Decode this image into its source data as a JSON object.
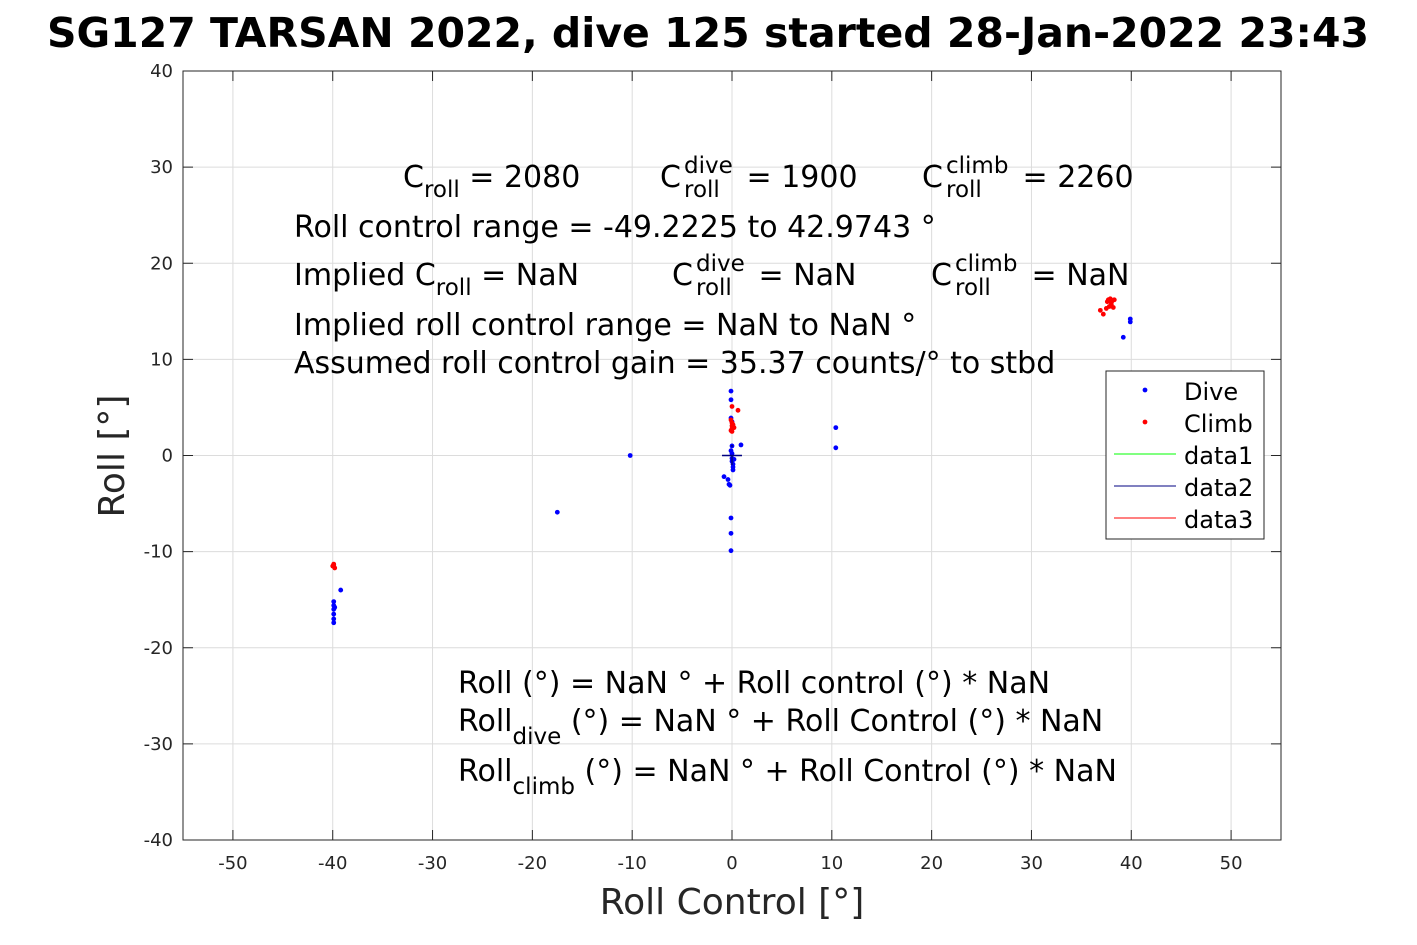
{
  "chart_data": {
    "type": "scatter",
    "title": "SG127 TARSAN 2022, dive 125 started 28-Jan-2022 23:43",
    "xlabel": "Roll Control [°]",
    "ylabel": "Roll [°]",
    "xlim": [
      -55,
      55
    ],
    "ylim": [
      -40,
      40
    ],
    "xticks": [
      -50,
      -40,
      -30,
      -20,
      -10,
      0,
      10,
      20,
      30,
      40,
      50
    ],
    "yticks": [
      -40,
      -30,
      -20,
      -10,
      0,
      10,
      20,
      30,
      40
    ],
    "grid": true,
    "legend_position": "right",
    "series": [
      {
        "name": "Dive",
        "color": "#0000ff",
        "marker": "dot",
        "points": [
          [
            -39.9,
            -15.2
          ],
          [
            -39.9,
            -15.6
          ],
          [
            -39.9,
            -16.0
          ],
          [
            -39.9,
            -16.5
          ],
          [
            -39.9,
            -17.0
          ],
          [
            -39.9,
            -17.4
          ],
          [
            -39.8,
            -15.8
          ],
          [
            -39.2,
            -14.0
          ],
          [
            -17.5,
            -5.9
          ],
          [
            -10.2,
            0.0
          ],
          [
            -0.8,
            -2.2
          ],
          [
            -0.4,
            -2.5
          ],
          [
            -0.3,
            -3.0
          ],
          [
            -0.2,
            -3.1
          ],
          [
            -0.1,
            -6.5
          ],
          [
            -0.1,
            -8.1
          ],
          [
            -0.1,
            -9.9
          ],
          [
            0.0,
            -0.3
          ],
          [
            0.0,
            -0.6
          ],
          [
            0.1,
            -0.9
          ],
          [
            0.1,
            -1.2
          ],
          [
            0.2,
            -0.4
          ],
          [
            0.0,
            0.2
          ],
          [
            -0.1,
            0.5
          ],
          [
            0.0,
            1.0
          ],
          [
            0.1,
            -1.5
          ],
          [
            0.0,
            3.5
          ],
          [
            -0.1,
            3.9
          ],
          [
            -0.1,
            5.8
          ],
          [
            -0.1,
            6.7
          ],
          [
            0.9,
            1.1
          ],
          [
            10.4,
            2.9
          ],
          [
            10.4,
            0.8
          ],
          [
            39.2,
            12.3
          ],
          [
            39.9,
            13.9
          ],
          [
            39.9,
            14.2
          ]
        ]
      },
      {
        "name": "Climb",
        "color": "#ff0000",
        "marker": "dot",
        "points": [
          [
            -39.9,
            -11.3
          ],
          [
            -40.0,
            -11.5
          ],
          [
            -39.8,
            -11.7
          ],
          [
            -39.9,
            -11.4
          ],
          [
            0.0,
            2.5
          ],
          [
            0.0,
            2.8
          ],
          [
            0.0,
            3.1
          ],
          [
            0.0,
            3.4
          ],
          [
            -0.1,
            2.6
          ],
          [
            0.1,
            3.2
          ],
          [
            0.2,
            2.9
          ],
          [
            0.0,
            5.1
          ],
          [
            0.6,
            4.7
          ],
          [
            -0.1,
            3.7
          ],
          [
            36.9,
            15.1
          ],
          [
            37.2,
            14.7
          ],
          [
            37.5,
            15.3
          ],
          [
            37.6,
            16.0
          ],
          [
            37.8,
            15.5
          ],
          [
            37.9,
            16.3
          ],
          [
            38.0,
            15.7
          ],
          [
            38.1,
            16.1
          ],
          [
            38.2,
            15.4
          ],
          [
            38.3,
            16.2
          ],
          [
            37.7,
            16.2
          ],
          [
            38.0,
            15.9
          ]
        ]
      },
      {
        "name": "data1",
        "color": "#00ff00",
        "marker": "line",
        "points": []
      },
      {
        "name": "data2",
        "color": "#000080",
        "marker": "line",
        "points": [
          [
            -1.0,
            0.0
          ],
          [
            1.0,
            0.0
          ],
          [
            0.0,
            0.0
          ],
          [
            0.0,
            -1.0
          ],
          [
            0.0,
            1.0
          ]
        ]
      },
      {
        "name": "data3",
        "color": "#ff0000",
        "marker": "line",
        "points": []
      }
    ],
    "annotations": {
      "c_roll": {
        "base": "C",
        "sub": "roll",
        "value": " = 2080"
      },
      "c_dive": {
        "base": "C",
        "sup": "dive",
        "sub": "roll",
        "value": " = 1900"
      },
      "c_climb": {
        "base": "C",
        "sup": "climb",
        "sub": "roll",
        "value": " = 2260"
      },
      "range_line": "Roll control range = -49.2225 to 42.9743 °",
      "implied_prefix": "Implied C",
      "implied_sub": "roll",
      "implied_value": " =  NaN",
      "implied_dive": {
        "base": "C",
        "sup": "dive",
        "sub": "roll",
        "value": " =  NaN"
      },
      "implied_climb": {
        "base": "C",
        "sup": "climb",
        "sub": "roll",
        "value": " =  NaN"
      },
      "implied_range_line": "Implied roll control range = NaN to NaN °",
      "gain_line": "Assumed roll control gain = 35.37 counts/° to stbd",
      "eq1": "Roll (°) = NaN ° + Roll control (°) * NaN",
      "eq2": {
        "base": "Roll",
        "sub": "dive",
        "rest": " (°) = NaN ° + Roll Control (°) * NaN"
      },
      "eq3": {
        "base": "Roll",
        "sub": "climb",
        "rest": " (°) = NaN ° + Roll Control (°) * NaN"
      }
    }
  }
}
